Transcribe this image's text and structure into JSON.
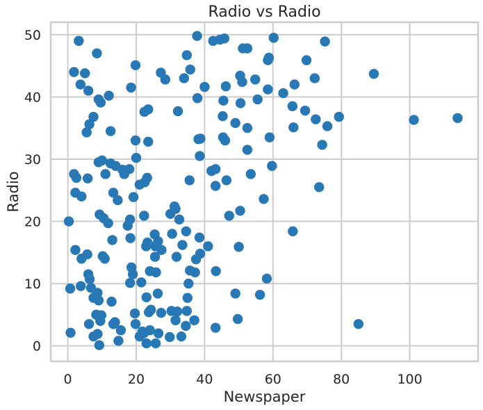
{
  "chart_data": {
    "type": "scatter",
    "title": "Radio vs Radio",
    "xlabel": "Newspaper",
    "ylabel": "Radio",
    "xlim": [
      -5,
      120
    ],
    "ylim": [
      -2.5,
      52
    ],
    "xticks": [
      0,
      20,
      40,
      60,
      80,
      100
    ],
    "yticks": [
      0,
      10,
      20,
      30,
      40,
      50
    ],
    "grid": true,
    "point_color": "#2878b5",
    "points": [
      [
        3.2,
        49.0
      ],
      [
        8.5,
        47.0
      ],
      [
        19.8,
        45.1
      ],
      [
        1.8,
        44.0
      ],
      [
        5.0,
        43.8
      ],
      [
        3.7,
        42.0
      ],
      [
        6.0,
        41.0
      ],
      [
        12.0,
        40.2
      ],
      [
        9.0,
        39.6
      ],
      [
        9.6,
        39.1
      ],
      [
        7.5,
        36.8
      ],
      [
        6.3,
        35.6
      ],
      [
        5.5,
        34.3
      ],
      [
        12.5,
        34.5
      ],
      [
        18.5,
        41.5
      ],
      [
        10.0,
        29.8
      ],
      [
        9.0,
        29.5
      ],
      [
        12.5,
        29.3
      ],
      [
        14.0,
        28.9
      ],
      [
        16.0,
        28.3
      ],
      [
        16.5,
        27.6
      ],
      [
        18.0,
        28.4
      ],
      [
        19.8,
        33.0
      ],
      [
        20.0,
        30.2
      ],
      [
        23.5,
        32.8
      ],
      [
        21.0,
        25.9
      ],
      [
        22.5,
        26.3
      ],
      [
        23.2,
        27.0
      ],
      [
        1.8,
        27.6
      ],
      [
        2.5,
        27.0
      ],
      [
        5.8,
        26.9
      ],
      [
        11.0,
        27.6
      ],
      [
        2.2,
        24.6
      ],
      [
        4.0,
        24.0
      ],
      [
        13.3,
        24.6
      ],
      [
        14.6,
        23.4
      ],
      [
        19.2,
        23.9
      ],
      [
        0.3,
        20.0
      ],
      [
        9.3,
        21.1
      ],
      [
        10.5,
        20.5
      ],
      [
        11.8,
        19.7
      ],
      [
        17.5,
        19.3
      ],
      [
        18.2,
        20.3
      ],
      [
        22.3,
        20.9
      ],
      [
        13.0,
        17.0
      ],
      [
        18.3,
        17.3
      ],
      [
        2.2,
        15.4
      ],
      [
        5.7,
        14.7
      ],
      [
        4.0,
        14.0
      ],
      [
        10.2,
        14.4
      ],
      [
        10.8,
        14.0
      ],
      [
        0.7,
        9.2
      ],
      [
        3.8,
        9.6
      ],
      [
        6.0,
        11.5
      ],
      [
        6.4,
        10.7
      ],
      [
        6.8,
        9.3
      ],
      [
        7.5,
        7.7
      ],
      [
        8.7,
        8.5
      ],
      [
        9.0,
        7.3
      ],
      [
        12.8,
        7.1
      ],
      [
        18.6,
        12.6
      ],
      [
        19.0,
        11.5
      ],
      [
        18.2,
        10.1
      ],
      [
        21.5,
        10.2
      ],
      [
        6.2,
        3.5
      ],
      [
        7.5,
        1.5
      ],
      [
        8.3,
        5.0
      ],
      [
        8.7,
        1.9
      ],
      [
        9.2,
        0.1
      ],
      [
        9.5,
        4.0
      ],
      [
        9.8,
        4.9
      ],
      [
        13.3,
        3.5
      ],
      [
        13.8,
        3.8
      ],
      [
        14.8,
        0.8
      ],
      [
        15.5,
        2.5
      ],
      [
        0.8,
        2.1
      ],
      [
        19.6,
        5.2
      ],
      [
        19.8,
        3.5
      ],
      [
        21.0,
        1.5
      ],
      [
        21.8,
        2.3
      ],
      [
        22.2,
        2.0
      ],
      [
        23.0,
        7.8
      ],
      [
        23.7,
        5.4
      ],
      [
        23.0,
        0.4
      ],
      [
        24.0,
        2.5
      ],
      [
        24.3,
        5.8
      ],
      [
        25.7,
        0.4
      ],
      [
        26.5,
        2.0
      ],
      [
        22.4,
        37.6
      ],
      [
        23.5,
        38.0
      ],
      [
        27.2,
        43.9
      ],
      [
        28.5,
        42.8
      ],
      [
        32.2,
        37.7
      ],
      [
        34.0,
        43.0
      ],
      [
        34.8,
        46.7
      ],
      [
        35.8,
        44.4
      ],
      [
        37.8,
        49.8
      ],
      [
        37.9,
        39.8
      ],
      [
        38.2,
        33.2
      ],
      [
        38.8,
        33.3
      ],
      [
        38.6,
        30.5
      ],
      [
        40.0,
        41.6
      ],
      [
        42.0,
        28.1
      ],
      [
        43.2,
        28.4
      ],
      [
        43.2,
        25.7
      ],
      [
        45.5,
        39.4
      ],
      [
        45.3,
        36.9
      ],
      [
        45.4,
        33.5
      ],
      [
        46.0,
        33.0
      ],
      [
        46.2,
        41.7
      ],
      [
        46.4,
        26.6
      ],
      [
        35.6,
        26.6
      ],
      [
        25.4,
        17.9
      ],
      [
        25.6,
        16.0
      ],
      [
        26.4,
        16.8
      ],
      [
        27.4,
        15.4
      ],
      [
        23.3,
        16.6
      ],
      [
        22.9,
        16.0
      ],
      [
        25.5,
        14.3
      ],
      [
        25.8,
        11.8
      ],
      [
        24.0,
        12.0
      ],
      [
        26.3,
        8.4
      ],
      [
        30.0,
        21.2
      ],
      [
        31.2,
        22.4
      ],
      [
        31.5,
        22.0
      ],
      [
        32.6,
        20.3
      ],
      [
        30.5,
        18.0
      ],
      [
        33.5,
        16.2
      ],
      [
        34.6,
        18.4
      ],
      [
        31.8,
        14.3
      ],
      [
        35.7,
        12.1
      ],
      [
        35.3,
        10.0
      ],
      [
        35.0,
        7.7
      ],
      [
        38.5,
        17.4
      ],
      [
        38.7,
        14.8
      ],
      [
        37.5,
        13.9
      ],
      [
        41.0,
        16.0
      ],
      [
        37.2,
        11.8
      ],
      [
        43.3,
        12.0
      ],
      [
        49.0,
        8.4
      ],
      [
        50.0,
        15.9
      ],
      [
        50.4,
        21.7
      ],
      [
        47.2,
        20.9
      ],
      [
        49.7,
        4.3
      ],
      [
        56.2,
        8.2
      ],
      [
        58.2,
        10.8
      ],
      [
        43.2,
        2.9
      ],
      [
        37.0,
        4.1
      ],
      [
        34.5,
        3.2
      ],
      [
        34.8,
        5.6
      ],
      [
        31.5,
        4.1
      ],
      [
        30.3,
        5.6
      ],
      [
        32.0,
        5.5
      ],
      [
        33.2,
        1.5
      ],
      [
        29.8,
        1.4
      ],
      [
        27.3,
        5.3
      ],
      [
        42.5,
        49.0
      ],
      [
        44.5,
        49.2
      ],
      [
        45.8,
        49.4
      ],
      [
        51.2,
        47.8
      ],
      [
        52.5,
        47.8
      ],
      [
        58.8,
        46.3
      ],
      [
        58.5,
        45.9
      ],
      [
        60.2,
        49.5
      ],
      [
        50.4,
        43.4
      ],
      [
        51.0,
        42.4
      ],
      [
        54.8,
        42.8
      ],
      [
        58.5,
        41.2
      ],
      [
        50.5,
        39.0
      ],
      [
        55.5,
        39.6
      ],
      [
        49.0,
        35.8
      ],
      [
        52.5,
        35.0
      ],
      [
        59.0,
        33.5
      ],
      [
        52.5,
        31.5
      ],
      [
        53.5,
        27.6
      ],
      [
        57.3,
        23.6
      ],
      [
        59.7,
        28.9
      ],
      [
        63.0,
        40.6
      ],
      [
        65.7,
        38.5
      ],
      [
        66.3,
        42.0
      ],
      [
        66.0,
        35.1
      ],
      [
        69.4,
        37.8
      ],
      [
        69.8,
        45.9
      ],
      [
        72.2,
        43.0
      ],
      [
        72.5,
        36.4
      ],
      [
        74.4,
        32.3
      ],
      [
        75.2,
        48.9
      ],
      [
        75.9,
        35.3
      ],
      [
        79.3,
        36.8
      ],
      [
        73.5,
        25.5
      ],
      [
        65.8,
        18.4
      ],
      [
        89.5,
        43.7
      ],
      [
        85.0,
        3.5
      ],
      [
        101.2,
        36.3
      ],
      [
        114.0,
        36.6
      ]
    ]
  }
}
